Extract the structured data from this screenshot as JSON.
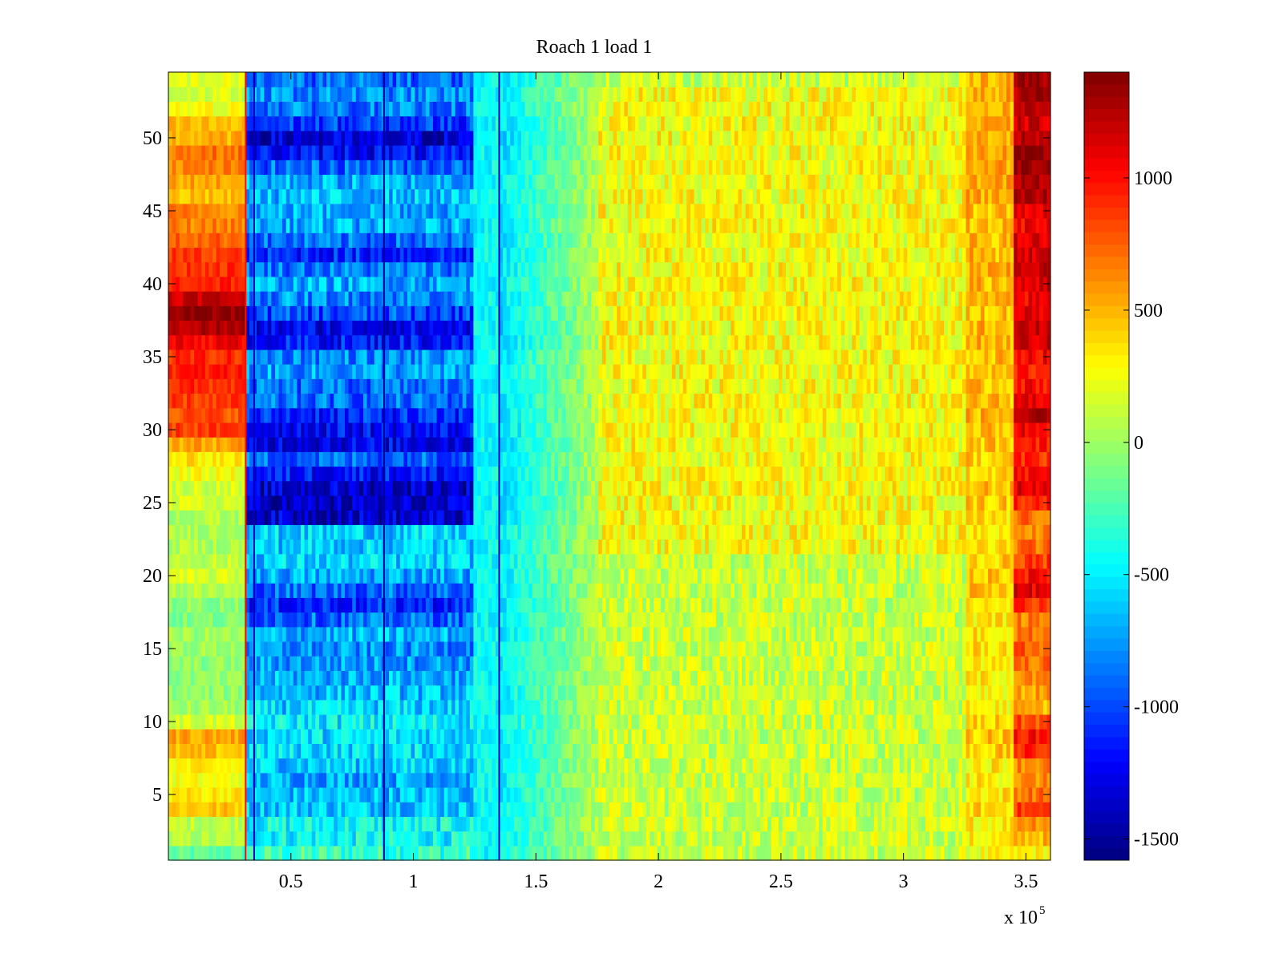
{
  "chart_data": {
    "type": "heatmap",
    "title": "Roach 1 load 1",
    "xlabel": "",
    "ylabel": "",
    "xlim": [
      0,
      360000
    ],
    "ylim": [
      0.5,
      54.5
    ],
    "x_exponent_label": "x 10",
    "x_exponent_power": "5",
    "x_ticks": [
      {
        "value": 50000,
        "label": "0.5"
      },
      {
        "value": 100000,
        "label": "1"
      },
      {
        "value": 150000,
        "label": "1.5"
      },
      {
        "value": 200000,
        "label": "2"
      },
      {
        "value": 250000,
        "label": "2.5"
      },
      {
        "value": 300000,
        "label": "3"
      },
      {
        "value": 350000,
        "label": "3.5"
      }
    ],
    "y_ticks": [
      {
        "value": 5,
        "label": "5"
      },
      {
        "value": 10,
        "label": "10"
      },
      {
        "value": 15,
        "label": "15"
      },
      {
        "value": 20,
        "label": "20"
      },
      {
        "value": 25,
        "label": "25"
      },
      {
        "value": 30,
        "label": "30"
      },
      {
        "value": 35,
        "label": "35"
      },
      {
        "value": 40,
        "label": "40"
      },
      {
        "value": 45,
        "label": "45"
      },
      {
        "value": 50,
        "label": "50"
      }
    ],
    "colorbar": {
      "colormap": "jet",
      "clim": [
        -1580,
        1400
      ],
      "ticks": [
        {
          "value": 1000,
          "label": "1000"
        },
        {
          "value": 500,
          "label": "500"
        },
        {
          "value": 0,
          "label": "0"
        },
        {
          "value": -500,
          "label": "-500"
        },
        {
          "value": -1000,
          "label": "-1000"
        },
        {
          "value": -1500,
          "label": "-1500"
        }
      ]
    },
    "rows": 54,
    "columns": [
      {
        "x0": 0,
        "x1": 32000,
        "baseline": 100,
        "variation": 180
      },
      {
        "x0": 32000,
        "x1": 125000,
        "baseline": -600,
        "variation": 250
      },
      {
        "x0": 125000,
        "x1": 135000,
        "baseline": -400,
        "variation": 200
      },
      {
        "x0": 135000,
        "x1": 175000,
        "baseline": -150,
        "variation": 200
      },
      {
        "x0": 175000,
        "x1": 325000,
        "baseline": 150,
        "variation": 180
      },
      {
        "x0": 325000,
        "x1": 345000,
        "baseline": 350,
        "variation": 200
      },
      {
        "x0": 345000,
        "x1": 360000,
        "baseline": 900,
        "variation": 250
      }
    ],
    "row_values_left_region": [
      -200,
      50,
      100,
      450,
      350,
      250,
      300,
      450,
      550,
      150,
      0,
      -50,
      -50,
      -50,
      0,
      0,
      -100,
      -50,
      50,
      150,
      100,
      50,
      50,
      50,
      150,
      150,
      250,
      350,
      550,
      850,
      800,
      850,
      900,
      950,
      900,
      1050,
      1250,
      1350,
      1200,
      950,
      900,
      850,
      750,
      650,
      650,
      450,
      550,
      650,
      700,
      500,
      450,
      250,
      150,
      200
    ],
    "row_values_blue_region": [
      -300,
      -450,
      -450,
      -600,
      -650,
      -700,
      -600,
      -550,
      -550,
      -500,
      -600,
      -650,
      -700,
      -750,
      -800,
      -700,
      -900,
      -1100,
      -900,
      -700,
      -600,
      -600,
      -600,
      -1350,
      -1400,
      -1350,
      -1150,
      -900,
      -1250,
      -1200,
      -1100,
      -900,
      -900,
      -750,
      -800,
      -1150,
      -1250,
      -1000,
      -800,
      -700,
      -850,
      -1100,
      -900,
      -700,
      -700,
      -650,
      -700,
      -900,
      -1200,
      -1350,
      -1050,
      -850,
      -800,
      -900
    ],
    "row_values_right_region": [
      300,
      500,
      650,
      850,
      700,
      600,
      650,
      900,
      1000,
      800,
      500,
      550,
      600,
      700,
      750,
      700,
      650,
      900,
      1100,
      1000,
      850,
      700,
      650,
      700,
      950,
      1100,
      1000,
      900,
      950,
      1050,
      1200,
      1100,
      1000,
      950,
      1050,
      1150,
      1200,
      1100,
      1050,
      1150,
      1200,
      1150,
      1100,
      1050,
      1100,
      1250,
      1300,
      1350,
      1300,
      1200,
      1150,
      1200,
      1250,
      1300
    ],
    "vertical_streaks": [
      {
        "x": 31500,
        "value": 1000
      },
      {
        "x": 35000,
        "value": -1400
      },
      {
        "x": 88000,
        "value": -1500
      },
      {
        "x": 135000,
        "value": -1400
      }
    ]
  }
}
